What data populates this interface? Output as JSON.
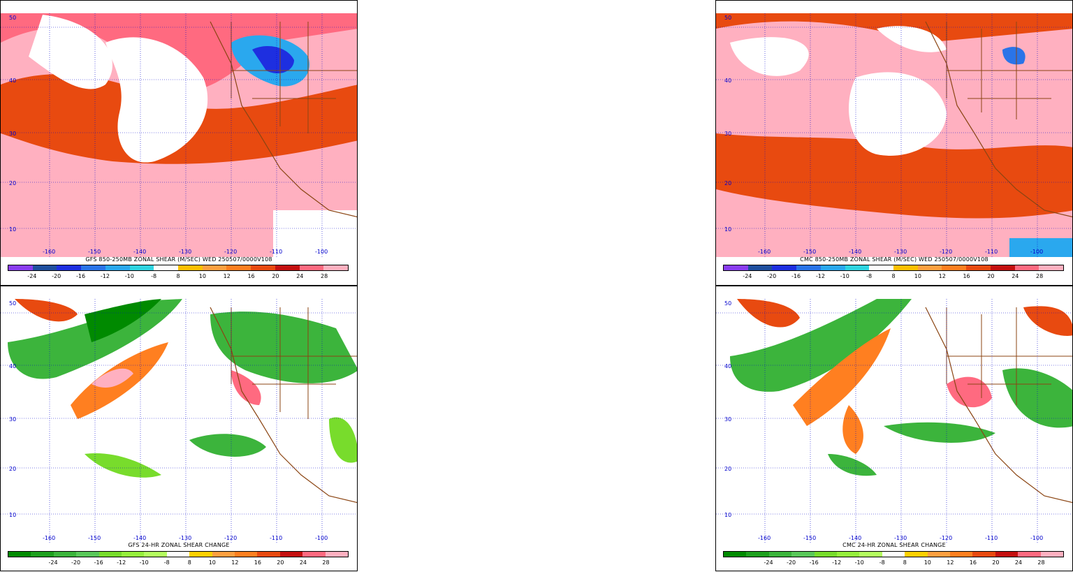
{
  "panels": [
    {
      "id": "gfs-shear",
      "model": "GFS",
      "caption": "GFS 850-250MB ZONAL SHEAR (M/SEC) WED 250507/0000V108",
      "palette": "shear"
    },
    {
      "id": "cmc-shear",
      "model": "CMC",
      "caption": "CMC 850-250MB ZONAL SHEAR (M/SEC) WED 250507/0000V108",
      "palette": "shear"
    },
    {
      "id": "gfs-change",
      "model": "GFS",
      "caption": "GFS 24-HR ZONAL SHEAR CHANGE",
      "palette": "change"
    },
    {
      "id": "cmc-change",
      "model": "CMC",
      "caption": "CMC 24-HR ZONAL SHEAR CHANGE",
      "palette": "change"
    }
  ],
  "lat_ticks": [
    "50",
    "40",
    "30",
    "20",
    "10"
  ],
  "lon_ticks": [
    "-160",
    "-150",
    "-140",
    "-130",
    "-120",
    "-110",
    "-100"
  ],
  "colorbar_labels": [
    "-24",
    "-20",
    "-16",
    "-12",
    "-10",
    "-8",
    "8",
    "10",
    "12",
    "16",
    "20",
    "24",
    "28"
  ],
  "palettes": {
    "shear": [
      "#8a3df0",
      "#1f4f9e",
      "#1e2fe0",
      "#2a74e8",
      "#2aa8ee",
      "#2fd4e0",
      "#ffffff",
      "#ffc000",
      "#ffa040",
      "#ff7f20",
      "#e84a10",
      "#c41010",
      "#ff6a80",
      "#ffb0c0"
    ],
    "change": [
      "#008a00",
      "#1ea01e",
      "#3cb43c",
      "#5ac85a",
      "#78dc2c",
      "#96f03c",
      "#b4ff60",
      "#ffffff",
      "#ffd000",
      "#ffa040",
      "#ff7f20",
      "#e84a10",
      "#c41010",
      "#ff6a80",
      "#ffb0c0"
    ]
  },
  "colors": {
    "grid": "#0000cc",
    "border": "#8b4513"
  }
}
